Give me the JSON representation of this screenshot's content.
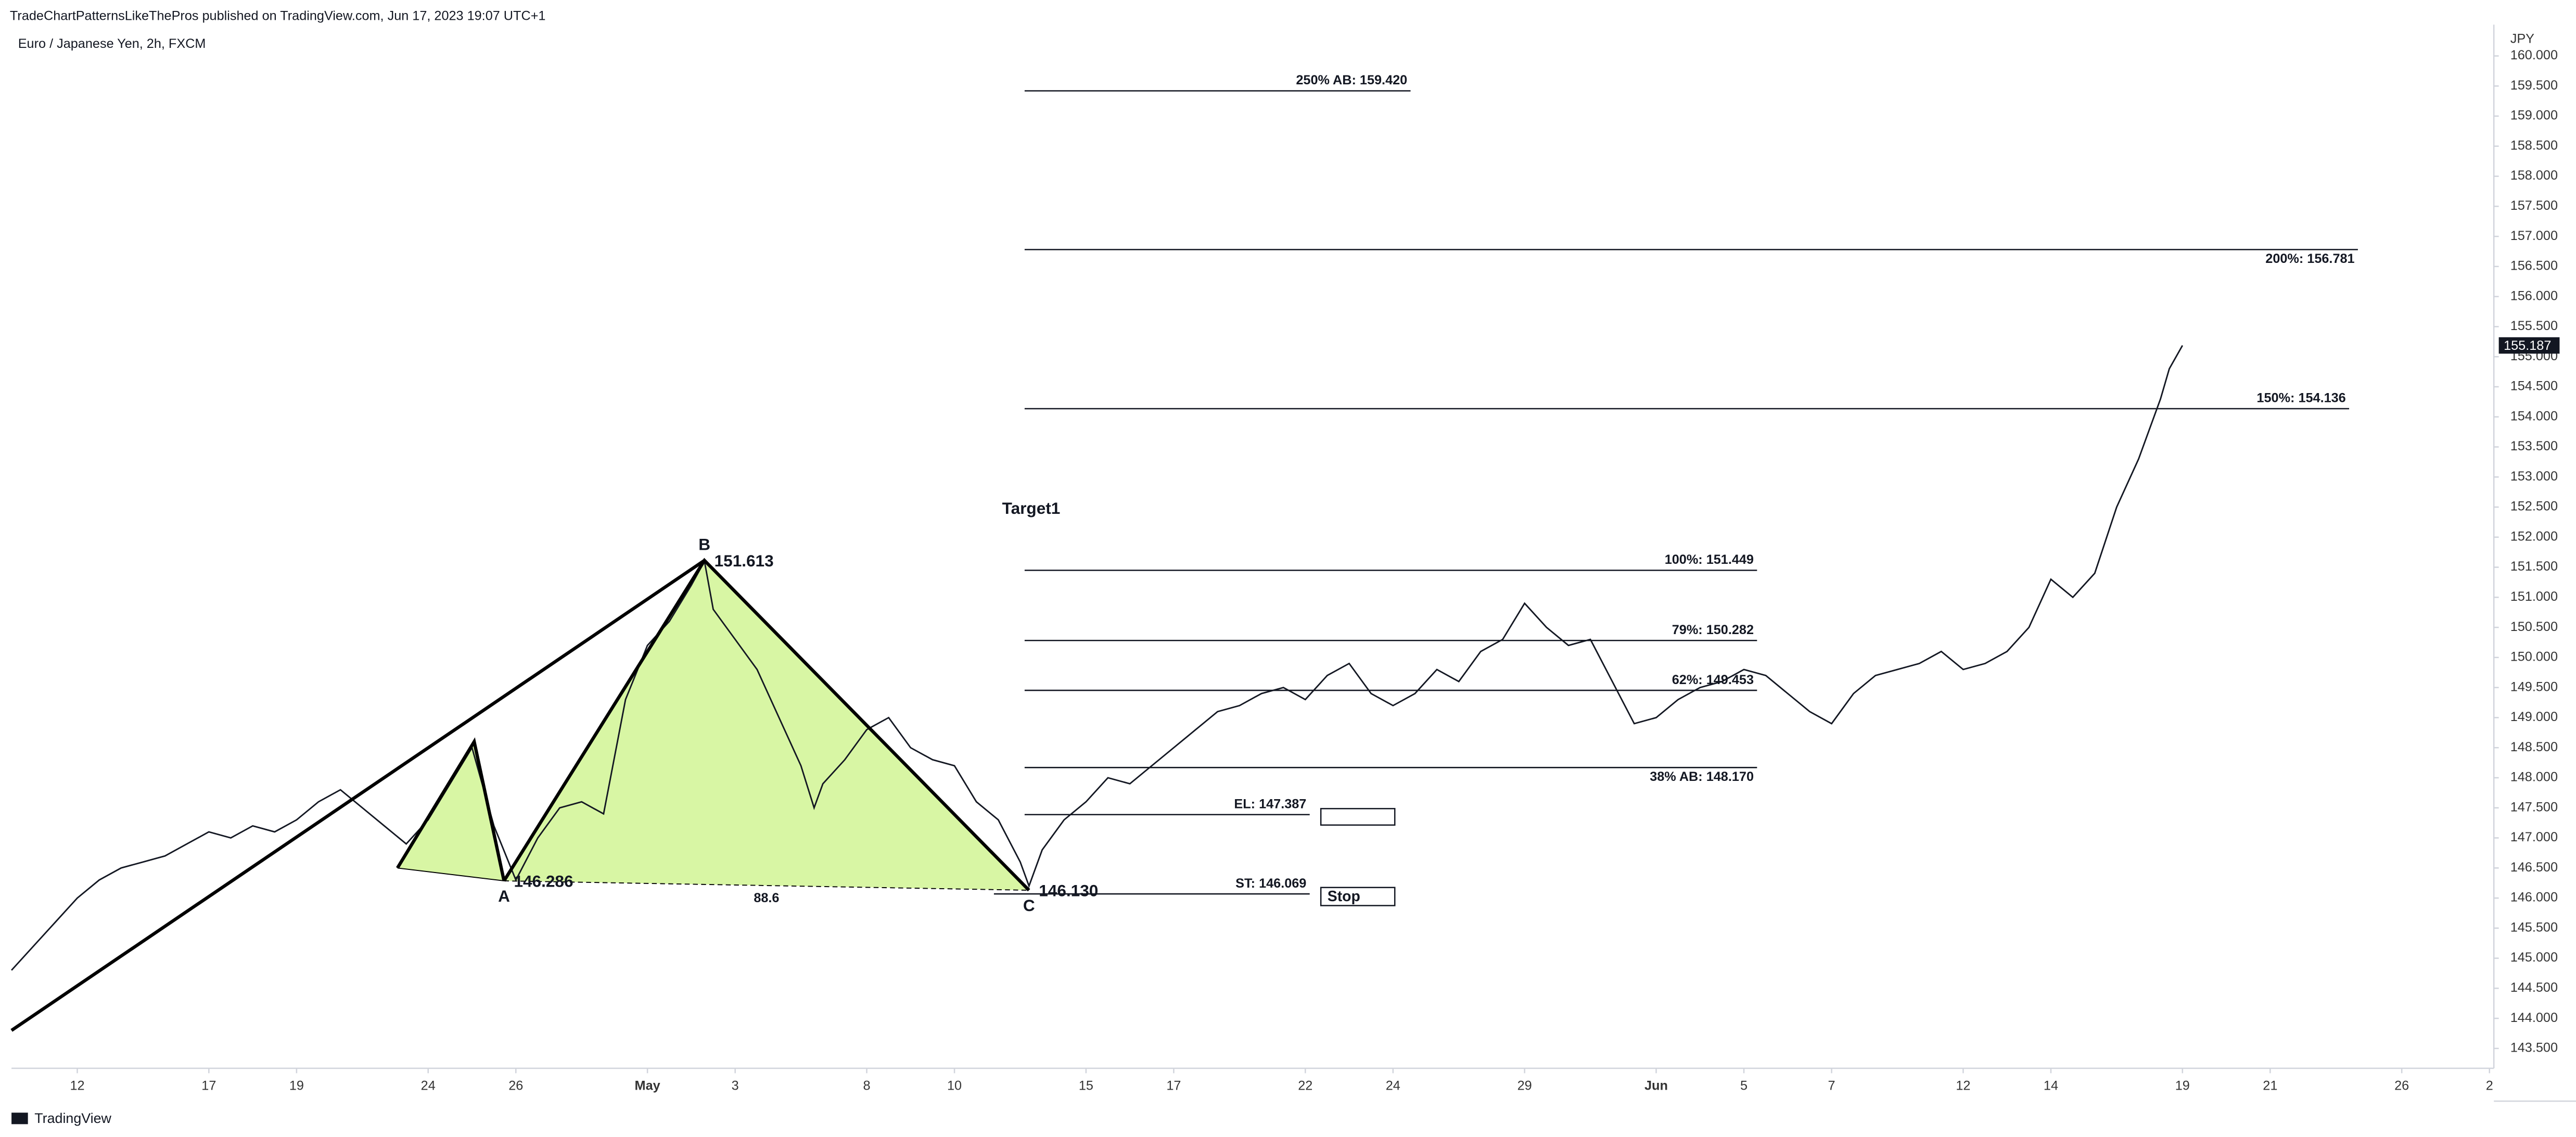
{
  "chart_data": {
    "type": "line",
    "header": "TradeChartPatternsLikeThePros published on TradingView.com, Jun 17, 2023 19:07 UTC+1",
    "title": "Euro / Japanese Yen, 2h, FXCM",
    "y_axis_label": "JPY",
    "brand": "TradingView",
    "color": "#131722",
    "x": [
      0,
      0.5,
      1,
      1.5,
      2,
      2.5,
      3,
      3.5,
      4,
      4.5,
      5,
      5.5,
      6,
      6.5,
      7,
      7.5,
      8,
      8.5,
      9,
      9.5,
      10,
      10.5,
      11,
      11.5,
      12,
      12.5,
      13,
      13.5,
      14,
      14.5,
      15,
      15.5,
      15.8,
      16,
      16.5,
      17,
      17.5,
      18,
      18.3,
      18.5,
      19,
      19.5,
      20,
      20.5,
      21,
      21.5,
      22,
      22.5,
      23,
      23.2,
      23.5,
      24,
      24.5,
      25,
      25.5,
      26,
      26.5,
      27,
      27.5,
      28,
      28.5,
      29,
      29.5,
      30,
      30.5,
      31,
      31.5,
      32,
      32.5,
      33,
      33.5,
      34,
      34.5,
      35,
      35.5,
      36,
      36.5,
      37,
      37.5,
      38,
      38.5,
      39,
      39.5,
      40,
      40.5,
      41,
      41.5,
      42,
      42.5,
      43,
      43.5,
      44,
      44.5,
      45,
      45.5,
      46,
      46.5,
      47,
      47.5,
      48,
      48.5,
      49,
      49.2,
      49.5
    ],
    "values": [
      144.8,
      145.2,
      145.6,
      146.0,
      146.3,
      146.5,
      146.6,
      146.7,
      146.9,
      147.1,
      147.0,
      147.2,
      147.1,
      147.3,
      147.6,
      147.8,
      147.5,
      147.2,
      146.9,
      147.3,
      147.9,
      148.5,
      147.2,
      146.3,
      147.0,
      147.5,
      147.6,
      147.4,
      149.3,
      150.2,
      150.6,
      151.2,
      151.6,
      150.8,
      150.3,
      149.8,
      149.0,
      148.2,
      147.5,
      147.9,
      148.3,
      148.8,
      149.0,
      148.5,
      148.3,
      148.2,
      147.6,
      147.3,
      146.6,
      146.2,
      146.8,
      147.3,
      147.6,
      148.0,
      147.9,
      148.2,
      148.5,
      148.8,
      149.1,
      149.2,
      149.4,
      149.5,
      149.3,
      149.7,
      149.9,
      149.4,
      149.2,
      149.4,
      149.8,
      149.6,
      150.1,
      150.3,
      150.9,
      150.5,
      150.2,
      150.3,
      149.6,
      148.9,
      149.0,
      149.3,
      149.5,
      149.6,
      149.8,
      149.7,
      149.4,
      149.1,
      148.9,
      149.4,
      149.7,
      149.8,
      149.9,
      150.1,
      149.8,
      149.9,
      150.1,
      150.5,
      151.3,
      151.0,
      151.4,
      152.5,
      153.3,
      154.3,
      154.8,
      155.187
    ],
    "xlim": [
      0,
      56.6
    ],
    "xticks": [
      {
        "value": 1.5,
        "label": "12"
      },
      {
        "value": 4.5,
        "label": "17"
      },
      {
        "value": 6.5,
        "label": "19"
      },
      {
        "value": 9.5,
        "label": "24"
      },
      {
        "value": 11.5,
        "label": "26"
      },
      {
        "value": 14.5,
        "label": "May"
      },
      {
        "value": 16.5,
        "label": "3"
      },
      {
        "value": 19.5,
        "label": "8"
      },
      {
        "value": 21.5,
        "label": "10"
      },
      {
        "value": 24.5,
        "label": "15"
      },
      {
        "value": 26.5,
        "label": "17"
      },
      {
        "value": 29.5,
        "label": "22"
      },
      {
        "value": 31.5,
        "label": "24"
      },
      {
        "value": 34.5,
        "label": "29"
      },
      {
        "value": 37.5,
        "label": "Jun"
      },
      {
        "value": 39.5,
        "label": "5"
      },
      {
        "value": 41.5,
        "label": "7"
      },
      {
        "value": 44.5,
        "label": "12"
      },
      {
        "value": 46.5,
        "label": "14"
      },
      {
        "value": 49.5,
        "label": "19"
      },
      {
        "value": 51.5,
        "label": "21"
      },
      {
        "value": 54.5,
        "label": "26"
      },
      {
        "value": 56.5,
        "label": "2"
      }
    ],
    "ylim": [
      143.17,
      160.52
    ],
    "yticks": [
      {
        "value": 143.5,
        "label": "143.500"
      },
      {
        "value": 144,
        "label": "144.000"
      },
      {
        "value": 144.5,
        "label": "144.500"
      },
      {
        "value": 145,
        "label": "145.000"
      },
      {
        "value": 145.5,
        "label": "145.500"
      },
      {
        "value": 146,
        "label": "146.000"
      },
      {
        "value": 146.5,
        "label": "146.500"
      },
      {
        "value": 147,
        "label": "147.000"
      },
      {
        "value": 147.5,
        "label": "147.500"
      },
      {
        "value": 148,
        "label": "148.000"
      },
      {
        "value": 148.5,
        "label": "148.500"
      },
      {
        "value": 149,
        "label": "149.000"
      },
      {
        "value": 149.5,
        "label": "149.500"
      },
      {
        "value": 150,
        "label": "150.000"
      },
      {
        "value": 150.5,
        "label": "150.500"
      },
      {
        "value": 151,
        "label": "151.000"
      },
      {
        "value": 151.5,
        "label": "151.500"
      },
      {
        "value": 152,
        "label": "152.000"
      },
      {
        "value": 152.5,
        "label": "152.500"
      },
      {
        "value": 153,
        "label": "153.000"
      },
      {
        "value": 153.5,
        "label": "153.500"
      },
      {
        "value": 154,
        "label": "154.000"
      },
      {
        "value": 154.5,
        "label": "154.500"
      },
      {
        "value": 155,
        "label": "155.000"
      },
      {
        "value": 155.5,
        "label": "155.500"
      },
      {
        "value": 156,
        "label": "156.000"
      },
      {
        "value": 156.5,
        "label": "156.500"
      },
      {
        "value": 157,
        "label": "157.000"
      },
      {
        "value": 157.5,
        "label": "157.500"
      },
      {
        "value": 158,
        "label": "158.000"
      },
      {
        "value": 158.5,
        "label": "158.500"
      },
      {
        "value": 159,
        "label": "159.000"
      },
      {
        "value": 159.5,
        "label": "159.500"
      },
      {
        "value": 160,
        "label": "160.000"
      }
    ],
    "grid": false,
    "pattern": {
      "fill": "#d4f59a",
      "x": [
        0,
        8.8,
        10.55,
        11.23,
        15.8,
        23.2
      ],
      "values": [
        143.8,
        146.5,
        148.6,
        146.286,
        151.613,
        146.13
      ],
      "labels": [
        null,
        null,
        null,
        "A",
        "B",
        "C"
      ],
      "value_labels": [
        null,
        null,
        null,
        "146.286",
        "151.613",
        "146.130"
      ],
      "ratio": 88.6
    },
    "annotations": [
      "Target1"
    ],
    "levels": [
      {
        "label": "250% AB: 159.420",
        "value": 159.42,
        "x": [
          23.1,
          31.9
        ],
        "label_side": "above"
      },
      {
        "label": "200%: 156.781",
        "value": 156.781,
        "x": [
          23.1,
          53.5
        ],
        "label_side": "below"
      },
      {
        "label": "150%: 154.136",
        "value": 154.136,
        "x": [
          23.1,
          53.3
        ],
        "label_side": "above"
      },
      {
        "label": "100%: 151.449",
        "value": 151.449,
        "x": [
          23.1,
          39.8
        ],
        "label_side": "above"
      },
      {
        "label": "79%: 150.282",
        "value": 150.282,
        "x": [
          23.1,
          39.8
        ],
        "label_side": "above"
      },
      {
        "label": "62%: 149.453",
        "value": 149.453,
        "x": [
          23.1,
          39.8
        ],
        "label_side": "above"
      },
      {
        "label": "38% AB: 148.170",
        "value": 148.17,
        "x": [
          23.1,
          39.8
        ],
        "label_side": "below"
      },
      {
        "label": "EL: 147.387",
        "value": 147.387,
        "x": [
          23.1,
          29.6
        ],
        "label_side": "above"
      },
      {
        "label": "ST: 146.069",
        "value": 146.069,
        "x": [
          22.4,
          29.6
        ],
        "label_side": "above",
        "tag": "Stop"
      }
    ]
  }
}
